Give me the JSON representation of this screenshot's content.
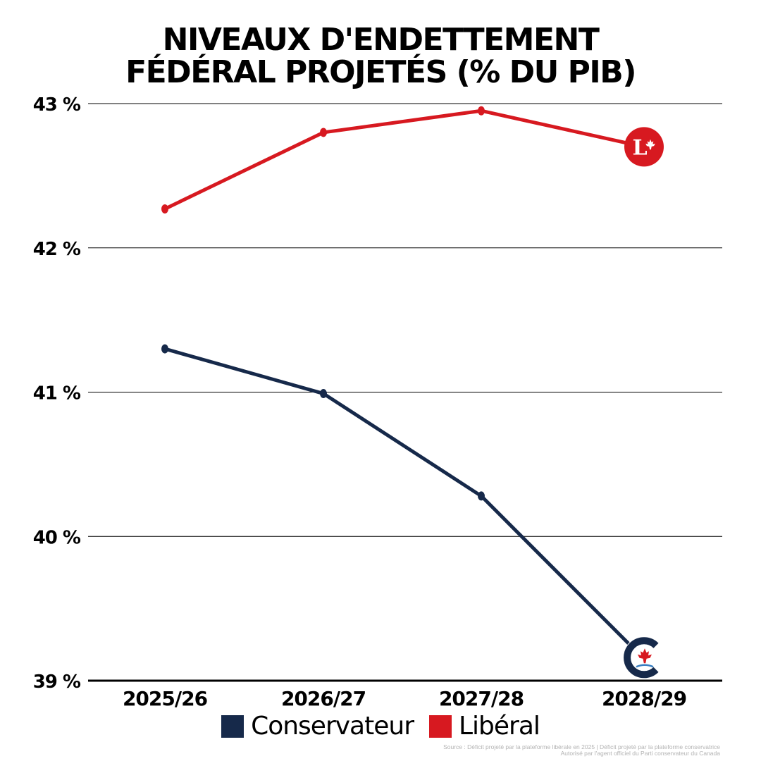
{
  "title": {
    "line1": "NIVEAUX D'ENDETTEMENT",
    "line2": "FÉDÉRAL PROJETÉS (% DU PIB)"
  },
  "chart_data": {
    "type": "line",
    "title": "NIVEAUX D'ENDETTEMENT FÉDÉRAL PROJETÉS (% DU PIB)",
    "xlabel": "",
    "ylabel": "",
    "categories": [
      "2025/26",
      "2026/27",
      "2027/28",
      "2028/29"
    ],
    "ylim": [
      39,
      43
    ],
    "yticks": [
      39,
      40,
      41,
      42,
      43
    ],
    "ytick_labels": [
      "39 %",
      "40 %",
      "41 %",
      "42 %",
      "43 %"
    ],
    "grid": "horizontal",
    "legend_position": "bottom",
    "series": [
      {
        "name": "Conservateur",
        "color": "#16294a",
        "values": [
          41.3,
          40.99,
          40.28,
          39.15
        ],
        "end_marker": "conservative-logo"
      },
      {
        "name": "Libéral",
        "color": "#d71920",
        "values": [
          42.27,
          42.8,
          42.95,
          42.7
        ],
        "end_marker": "liberal-logo"
      }
    ]
  },
  "legend": {
    "items": [
      {
        "label": "Conservateur",
        "color": "#16294a"
      },
      {
        "label": "Libéral",
        "color": "#d71920"
      }
    ]
  },
  "logos": {
    "liberal_letter": "L"
  },
  "source": {
    "line1": "Source : Déficit projeté par la plateforme libérale en 2025 | Déficit projeté par la plateforme conservatrice",
    "line2": "Autorisé par l'agent officiel du Parti conservateur du Canada"
  }
}
